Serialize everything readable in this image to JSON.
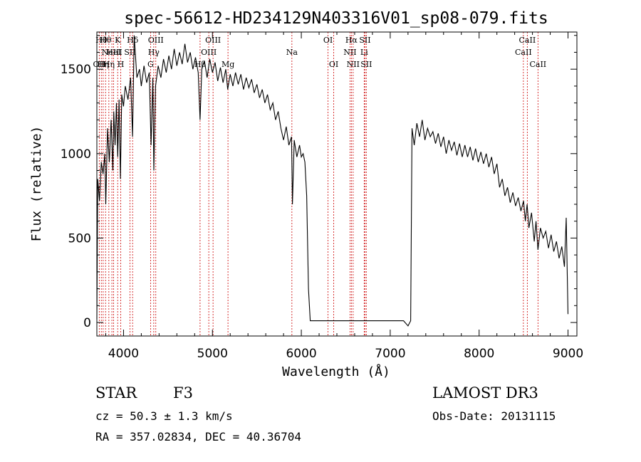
{
  "chart_data": {
    "type": "line",
    "title": "spec-56612-HD234129N403316V01_sp08-079.fits",
    "xlabel": "Wavelength (Å)",
    "ylabel": "Flux (relative)",
    "xlim": [
      3700,
      9100
    ],
    "ylim": [
      -80,
      1720
    ],
    "xticks": [
      4000,
      5000,
      6000,
      7000,
      8000,
      9000
    ],
    "yticks": [
      0,
      500,
      1000,
      1500
    ],
    "grid": false,
    "series": [
      {
        "color": "#000000",
        "points": [
          [
            3700,
            20
          ],
          [
            3710,
            850
          ],
          [
            3730,
            720
          ],
          [
            3750,
            950
          ],
          [
            3770,
            880
          ],
          [
            3790,
            1000
          ],
          [
            3800,
            700
          ],
          [
            3820,
            1150
          ],
          [
            3840,
            950
          ],
          [
            3860,
            1200
          ],
          [
            3880,
            900
          ],
          [
            3890,
            1250
          ],
          [
            3905,
            1050
          ],
          [
            3920,
            1300
          ],
          [
            3935,
            980
          ],
          [
            3950,
            1320
          ],
          [
            3965,
            850
          ],
          [
            3980,
            1350
          ],
          [
            4000,
            1280
          ],
          [
            4020,
            1400
          ],
          [
            4050,
            1320
          ],
          [
            4080,
            1450
          ],
          [
            4101,
            1100
          ],
          [
            4120,
            1700
          ],
          [
            4150,
            1450
          ],
          [
            4180,
            1500
          ],
          [
            4200,
            1400
          ],
          [
            4230,
            1520
          ],
          [
            4260,
            1420
          ],
          [
            4290,
            1480
          ],
          [
            4310,
            1050
          ],
          [
            4330,
            1450
          ],
          [
            4341,
            900
          ],
          [
            4360,
            1400
          ],
          [
            4390,
            1520
          ],
          [
            4420,
            1450
          ],
          [
            4450,
            1560
          ],
          [
            4480,
            1480
          ],
          [
            4510,
            1580
          ],
          [
            4540,
            1500
          ],
          [
            4570,
            1620
          ],
          [
            4600,
            1520
          ],
          [
            4630,
            1600
          ],
          [
            4660,
            1530
          ],
          [
            4690,
            1650
          ],
          [
            4720,
            1540
          ],
          [
            4750,
            1600
          ],
          [
            4780,
            1500
          ],
          [
            4810,
            1570
          ],
          [
            4840,
            1480
          ],
          [
            4861,
            1200
          ],
          [
            4880,
            1500
          ],
          [
            4910,
            1550
          ],
          [
            4940,
            1450
          ],
          [
            4970,
            1560
          ],
          [
            5000,
            1480
          ],
          [
            5030,
            1540
          ],
          [
            5060,
            1430
          ],
          [
            5090,
            1510
          ],
          [
            5120,
            1420
          ],
          [
            5150,
            1500
          ],
          [
            5172,
            1380
          ],
          [
            5200,
            1470
          ],
          [
            5230,
            1400
          ],
          [
            5260,
            1480
          ],
          [
            5290,
            1410
          ],
          [
            5320,
            1470
          ],
          [
            5350,
            1380
          ],
          [
            5380,
            1450
          ],
          [
            5410,
            1390
          ],
          [
            5440,
            1440
          ],
          [
            5470,
            1360
          ],
          [
            5500,
            1410
          ],
          [
            5530,
            1330
          ],
          [
            5560,
            1380
          ],
          [
            5590,
            1300
          ],
          [
            5620,
            1350
          ],
          [
            5650,
            1260
          ],
          [
            5680,
            1300
          ],
          [
            5710,
            1200
          ],
          [
            5740,
            1250
          ],
          [
            5770,
            1150
          ],
          [
            5800,
            1080
          ],
          [
            5830,
            1160
          ],
          [
            5860,
            1050
          ],
          [
            5890,
            1100
          ],
          [
            5900,
            700
          ],
          [
            5920,
            1080
          ],
          [
            5950,
            980
          ],
          [
            5980,
            1050
          ],
          [
            6000,
            980
          ],
          [
            6020,
            1000
          ],
          [
            6040,
            950
          ],
          [
            6060,
            750
          ],
          [
            6080,
            200
          ],
          [
            6100,
            10
          ],
          [
            6400,
            10
          ],
          [
            6700,
            10
          ],
          [
            7000,
            10
          ],
          [
            7150,
            10
          ],
          [
            7200,
            -20
          ],
          [
            7230,
            10
          ],
          [
            7245,
            1150
          ],
          [
            7270,
            1050
          ],
          [
            7300,
            1180
          ],
          [
            7330,
            1100
          ],
          [
            7360,
            1200
          ],
          [
            7390,
            1080
          ],
          [
            7420,
            1150
          ],
          [
            7450,
            1100
          ],
          [
            7480,
            1130
          ],
          [
            7510,
            1060
          ],
          [
            7540,
            1120
          ],
          [
            7570,
            1040
          ],
          [
            7600,
            1100
          ],
          [
            7630,
            1000
          ],
          [
            7660,
            1080
          ],
          [
            7690,
            1020
          ],
          [
            7720,
            1070
          ],
          [
            7750,
            990
          ],
          [
            7780,
            1060
          ],
          [
            7810,
            980
          ],
          [
            7840,
            1050
          ],
          [
            7870,
            980
          ],
          [
            7900,
            1040
          ],
          [
            7930,
            960
          ],
          [
            7960,
            1030
          ],
          [
            7990,
            950
          ],
          [
            8020,
            1010
          ],
          [
            8050,
            940
          ],
          [
            8080,
            1000
          ],
          [
            8110,
            920
          ],
          [
            8140,
            980
          ],
          [
            8170,
            880
          ],
          [
            8200,
            940
          ],
          [
            8230,
            800
          ],
          [
            8260,
            850
          ],
          [
            8290,
            750
          ],
          [
            8320,
            800
          ],
          [
            8350,
            710
          ],
          [
            8380,
            770
          ],
          [
            8410,
            690
          ],
          [
            8440,
            740
          ],
          [
            8470,
            660
          ],
          [
            8500,
            720
          ],
          [
            8520,
            600
          ],
          [
            8540,
            700
          ],
          [
            8560,
            560
          ],
          [
            8590,
            650
          ],
          [
            8620,
            480
          ],
          [
            8640,
            600
          ],
          [
            8662,
            430
          ],
          [
            8690,
            560
          ],
          [
            8720,
            500
          ],
          [
            8750,
            540
          ],
          [
            8780,
            440
          ],
          [
            8810,
            520
          ],
          [
            8840,
            420
          ],
          [
            8870,
            480
          ],
          [
            8900,
            380
          ],
          [
            8930,
            450
          ],
          [
            8960,
            330
          ],
          [
            8980,
            620
          ],
          [
            9000,
            50
          ]
        ]
      }
    ],
    "line_markers": [
      {
        "wavelength": 3727,
        "label": "OII",
        "row": 2
      },
      {
        "wavelength": 3750,
        "label": "Hθ",
        "row": 0
      },
      {
        "wavelength": 3771,
        "label": "Hη",
        "row": 2
      },
      {
        "wavelength": 3798,
        "label": "Hθ",
        "row": 0
      },
      {
        "wavelength": 3835,
        "label": "Hη",
        "row": 2
      },
      {
        "wavelength": 3869,
        "label": "NeIII",
        "row": 1
      },
      {
        "wavelength": 3889,
        "label": "HeI",
        "row": 1
      },
      {
        "wavelength": 3934,
        "label": "K",
        "row": 0
      },
      {
        "wavelength": 3969,
        "label": "H",
        "row": 2
      },
      {
        "wavelength": 4072,
        "label": "SII",
        "row": 1
      },
      {
        "wavelength": 4102,
        "label": "Hδ",
        "row": 0
      },
      {
        "wavelength": 4304,
        "label": "G",
        "row": 2
      },
      {
        "wavelength": 4340,
        "label": "Hγ",
        "row": 1
      },
      {
        "wavelength": 4363,
        "label": "OIII",
        "row": 0
      },
      {
        "wavelength": 4861,
        "label": "Hβ",
        "row": 2
      },
      {
        "wavelength": 4959,
        "label": "OIII",
        "row": 1
      },
      {
        "wavelength": 5007,
        "label": "OIII",
        "row": 0
      },
      {
        "wavelength": 5175,
        "label": "Mg",
        "row": 2
      },
      {
        "wavelength": 5894,
        "label": "Na",
        "row": 1
      },
      {
        "wavelength": 6300,
        "label": "OI",
        "row": 0
      },
      {
        "wavelength": 6364,
        "label": "OI",
        "row": 2
      },
      {
        "wavelength": 6548,
        "label": "NII",
        "row": 1
      },
      {
        "wavelength": 6563,
        "label": "Hα",
        "row": 0
      },
      {
        "wavelength": 6583,
        "label": "NII",
        "row": 2
      },
      {
        "wavelength": 6707,
        "label": "Li",
        "row": 1
      },
      {
        "wavelength": 6716,
        "label": "SII",
        "row": 0
      },
      {
        "wavelength": 6731,
        "label": "SII",
        "row": 2
      },
      {
        "wavelength": 8498,
        "label": "CaII",
        "row": 1
      },
      {
        "wavelength": 8542,
        "label": "CaII",
        "row": 0
      },
      {
        "wavelength": 8662,
        "label": "CaII",
        "row": 2
      }
    ],
    "marker_color": "#cc0000"
  },
  "footer": {
    "object_class": "STAR",
    "subclass": "F3",
    "survey": "LAMOST DR3",
    "redshift": "cz = 50.3 ± 1.3 km/s",
    "obs_date": "Obs-Date: 20131115",
    "coordinates": "RA = 357.02834, DEC =  40.36704"
  }
}
